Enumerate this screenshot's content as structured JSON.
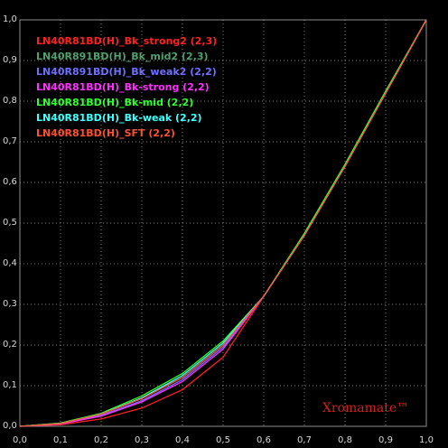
{
  "chart_data": {
    "type": "line",
    "annotation": "Xromamate™",
    "x": [
      0,
      0.1,
      0.2,
      0.3,
      0.4,
      0.5,
      0.6,
      0.7,
      0.8,
      0.9,
      1
    ],
    "series": [
      {
        "name": "LN40R81BD(H)_Bk_strong2 (2,3)",
        "color": "#ff2020",
        "values": [
          0,
          0.004,
          0.018,
          0.045,
          0.09,
          0.17,
          0.32,
          0.47,
          0.64,
          0.82,
          1
        ]
      },
      {
        "name": "LN40R891BD(H)_Bk_mid2 (2,3)",
        "color": "#50a070",
        "values": [
          0,
          0.008,
          0.03,
          0.07,
          0.12,
          0.2,
          0.32,
          0.47,
          0.64,
          0.82,
          1
        ]
      },
      {
        "name": "LN40R891BD(H)_Bk_weak2 (2,2)",
        "color": "#7070ff",
        "values": [
          0,
          0.007,
          0.027,
          0.063,
          0.115,
          0.195,
          0.32,
          0.47,
          0.64,
          0.82,
          1
        ]
      },
      {
        "name": "LN40R81BD(H)_Bk-strong (2,2)",
        "color": "#ff30ff",
        "values": [
          0,
          0.006,
          0.025,
          0.06,
          0.11,
          0.19,
          0.32,
          0.47,
          0.64,
          0.82,
          1
        ]
      },
      {
        "name": "LN40R81BD(H)_Bk-mid (2,2)",
        "color": "#30ff30",
        "values": [
          0,
          0.008,
          0.032,
          0.075,
          0.13,
          0.21,
          0.32,
          0.475,
          0.645,
          0.825,
          1
        ]
      },
      {
        "name": "LN40R81BD(H)_Bk-weak (2,2)",
        "color": "#40ffff",
        "values": [
          0,
          0.007,
          0.03,
          0.07,
          0.125,
          0.205,
          0.32,
          0.47,
          0.64,
          0.82,
          1
        ]
      },
      {
        "name": "LN40R81BD(H)_SFT (2,2)",
        "color": "#ff5030",
        "values": [
          0,
          0.007,
          0.03,
          0.068,
          0.12,
          0.2,
          0.32,
          0.47,
          0.64,
          0.82,
          1
        ]
      }
    ],
    "xlim": [
      0,
      1
    ],
    "ylim": [
      0,
      1
    ],
    "xticks": [
      {
        "value": 0,
        "label": "0,0"
      },
      {
        "value": 0.1,
        "label": "0,1"
      },
      {
        "value": 0.2,
        "label": "0,2"
      },
      {
        "value": 0.3,
        "label": "0,3"
      },
      {
        "value": 0.4,
        "label": "0,4"
      },
      {
        "value": 0.5,
        "label": "0,5"
      },
      {
        "value": 0.6,
        "label": "0,6"
      },
      {
        "value": 0.7,
        "label": "0,7"
      },
      {
        "value": 0.8,
        "label": "0,8"
      },
      {
        "value": 0.9,
        "label": "0,9"
      },
      {
        "value": 1,
        "label": "1,0"
      }
    ],
    "yticks": [
      {
        "value": 0,
        "label": "0,0"
      },
      {
        "value": 0.1,
        "label": "0,1"
      },
      {
        "value": 0.2,
        "label": "0,2"
      },
      {
        "value": 0.3,
        "label": "0,3"
      },
      {
        "value": 0.4,
        "label": "0,4"
      },
      {
        "value": 0.5,
        "label": "0,5"
      },
      {
        "value": 0.6,
        "label": "0,6"
      },
      {
        "value": 0.7,
        "label": "0,7"
      },
      {
        "value": 0.8,
        "label": "0,8"
      },
      {
        "value": 0.9,
        "label": "0,9"
      },
      {
        "value": 1,
        "label": "1,0"
      }
    ],
    "grid": true
  }
}
